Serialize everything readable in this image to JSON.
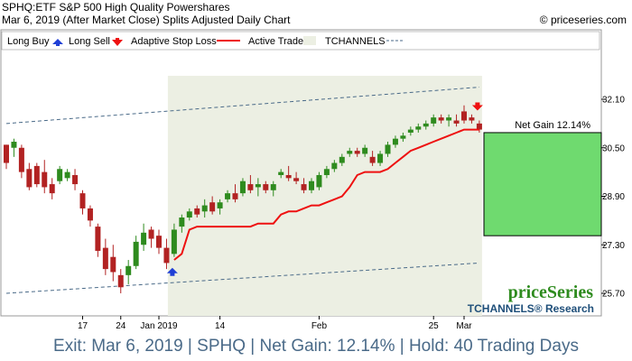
{
  "header": {
    "line1": "SPHQ:ETF S&P 500 High Quality Powershares",
    "line2": "Mar 6, 2019 (After Market Close)  Splits Adjusted Daily Chart",
    "copyright": "© priceseries.com"
  },
  "legend": [
    {
      "label": "Long Buy",
      "icon": "blue-up-arrow-icon"
    },
    {
      "label": "Long Sell",
      "icon": "red-down-arrow-icon"
    },
    {
      "label": "Adaptive Stop Loss",
      "icon": "red-line"
    },
    {
      "label": "Active Trade",
      "icon": "green-shaded-box"
    },
    {
      "label": "TCHANNELS",
      "icon": "dashed-line"
    }
  ],
  "brand": {
    "logo": "priceSeries",
    "sub": "TCHANNELS® Research"
  },
  "footer": {
    "text": "Exit: Mar 6, 2019 | SPHQ | Net Gain: 12.14% | Hold: 40 Trading Days"
  },
  "colors": {
    "up": "#2e8b1e",
    "down": "#b22222",
    "stop": "#ee1111",
    "trade_bg": "#ecefe3",
    "gain_box": "#6fda6f",
    "channel": "#4a6a88",
    "footer_text": "#4a6a88"
  },
  "chart_data": {
    "type": "candlestick",
    "y_ticks": [
      "32.10",
      "30.50",
      "28.90",
      "27.30",
      "25.70"
    ],
    "y_tick_values": [
      32.1,
      30.5,
      28.9,
      27.3,
      25.7
    ],
    "ylim": [
      25.0,
      33.5
    ],
    "x_ticks": [
      "17",
      "24",
      "Jan 2019",
      "14",
      "Feb",
      "25",
      "Mar"
    ],
    "x_tick_index": [
      10,
      15,
      20,
      28,
      41,
      56,
      60
    ],
    "gain_label": "Net Gain 12.14%",
    "gain_range": [
      27.6,
      31.0
    ],
    "entry_index": 22,
    "exit_index": 62,
    "channel_upper": [
      [
        0,
        31.3
      ],
      [
        62,
        32.5
      ]
    ],
    "channel_lower": [
      [
        0,
        25.7
      ],
      [
        62,
        26.7
      ]
    ],
    "ohlc": [
      [
        30.6,
        30.6,
        29.8,
        30.0
      ],
      [
        30.5,
        30.8,
        30.2,
        30.7
      ],
      [
        30.5,
        30.6,
        29.5,
        29.7
      ],
      [
        29.8,
        30.0,
        29.1,
        29.2
      ],
      [
        29.9,
        30.0,
        29.2,
        29.3
      ],
      [
        29.7,
        30.1,
        29.0,
        29.2
      ],
      [
        29.3,
        29.5,
        28.8,
        29.0
      ],
      [
        29.4,
        29.9,
        29.3,
        29.8
      ],
      [
        29.5,
        29.8,
        29.4,
        29.7
      ],
      [
        29.6,
        29.8,
        29.1,
        29.3
      ],
      [
        29.0,
        29.1,
        28.3,
        28.5
      ],
      [
        28.5,
        28.6,
        27.9,
        28.1
      ],
      [
        27.9,
        28.0,
        26.9,
        27.1
      ],
      [
        27.2,
        27.5,
        26.3,
        26.5
      ],
      [
        26.9,
        27.3,
        26.1,
        26.4
      ],
      [
        26.3,
        26.5,
        25.7,
        25.9
      ],
      [
        26.3,
        26.8,
        26.0,
        26.6
      ],
      [
        26.6,
        27.6,
        26.5,
        27.4
      ],
      [
        27.3,
        28.0,
        27.1,
        27.7
      ],
      [
        27.8,
        27.9,
        27.2,
        27.5
      ],
      [
        27.6,
        27.8,
        27.0,
        27.2
      ],
      [
        27.2,
        27.5,
        26.5,
        26.7
      ],
      [
        27.0,
        28.0,
        26.9,
        27.8
      ],
      [
        27.9,
        28.3,
        27.7,
        28.2
      ],
      [
        28.2,
        28.5,
        28.1,
        28.4
      ],
      [
        28.5,
        28.6,
        28.2,
        28.3
      ],
      [
        28.4,
        28.8,
        28.2,
        28.6
      ],
      [
        28.7,
        28.9,
        28.3,
        28.4
      ],
      [
        28.5,
        28.8,
        28.3,
        28.7
      ],
      [
        28.8,
        29.1,
        28.7,
        29.0
      ],
      [
        29.0,
        29.3,
        28.7,
        28.8
      ],
      [
        29.0,
        29.5,
        28.9,
        29.4
      ],
      [
        29.3,
        29.6,
        29.0,
        29.1
      ],
      [
        29.2,
        29.5,
        28.9,
        29.3
      ],
      [
        29.3,
        29.4,
        29.0,
        29.1
      ],
      [
        29.1,
        29.4,
        28.9,
        29.3
      ],
      [
        29.6,
        29.8,
        29.5,
        29.7
      ],
      [
        29.6,
        29.9,
        29.4,
        29.5
      ],
      [
        29.5,
        29.7,
        29.3,
        29.4
      ],
      [
        29.3,
        29.5,
        29.0,
        29.1
      ],
      [
        29.1,
        29.5,
        29.0,
        29.4
      ],
      [
        29.2,
        29.7,
        29.1,
        29.6
      ],
      [
        29.6,
        29.9,
        29.5,
        29.8
      ],
      [
        29.8,
        30.1,
        29.7,
        30.0
      ],
      [
        30.0,
        30.3,
        29.9,
        30.2
      ],
      [
        30.3,
        30.5,
        30.2,
        30.4
      ],
      [
        30.4,
        30.5,
        30.2,
        30.3
      ],
      [
        30.3,
        30.6,
        30.2,
        30.5
      ],
      [
        30.2,
        30.4,
        29.9,
        30.0
      ],
      [
        30.0,
        30.4,
        29.9,
        30.3
      ],
      [
        30.3,
        30.7,
        30.2,
        30.6
      ],
      [
        30.6,
        30.9,
        30.5,
        30.8
      ],
      [
        30.8,
        31.0,
        30.7,
        30.9
      ],
      [
        31.0,
        31.2,
        30.9,
        31.1
      ],
      [
        31.1,
        31.3,
        31.0,
        31.2
      ],
      [
        31.2,
        31.4,
        31.1,
        31.3
      ],
      [
        31.3,
        31.6,
        31.2,
        31.5
      ],
      [
        31.5,
        31.6,
        31.3,
        31.4
      ],
      [
        31.4,
        31.6,
        31.2,
        31.5
      ],
      [
        31.4,
        31.6,
        31.2,
        31.3
      ],
      [
        31.7,
        31.9,
        31.3,
        31.4
      ],
      [
        31.5,
        31.6,
        31.3,
        31.4
      ],
      [
        31.3,
        31.4,
        31.0,
        31.1
      ]
    ],
    "stop_loss": [
      [
        22,
        26.8
      ],
      [
        23,
        27.0
      ],
      [
        24,
        27.8
      ],
      [
        25,
        27.9
      ],
      [
        26,
        27.9
      ],
      [
        27,
        27.9
      ],
      [
        28,
        27.9
      ],
      [
        29,
        27.9
      ],
      [
        30,
        27.9
      ],
      [
        31,
        27.9
      ],
      [
        32,
        27.9
      ],
      [
        33,
        28.0
      ],
      [
        34,
        28.0
      ],
      [
        35,
        28.0
      ],
      [
        36,
        28.3
      ],
      [
        37,
        28.4
      ],
      [
        38,
        28.4
      ],
      [
        39,
        28.5
      ],
      [
        40,
        28.6
      ],
      [
        41,
        28.6
      ],
      [
        42,
        28.7
      ],
      [
        43,
        28.8
      ],
      [
        44,
        28.9
      ],
      [
        45,
        29.2
      ],
      [
        46,
        29.6
      ],
      [
        47,
        29.7
      ],
      [
        48,
        29.7
      ],
      [
        49,
        29.7
      ],
      [
        50,
        29.8
      ],
      [
        51,
        30.0
      ],
      [
        52,
        30.2
      ],
      [
        53,
        30.4
      ],
      [
        54,
        30.5
      ],
      [
        55,
        30.6
      ],
      [
        56,
        30.7
      ],
      [
        57,
        30.8
      ],
      [
        58,
        30.9
      ],
      [
        59,
        31.0
      ],
      [
        60,
        31.1
      ],
      [
        61,
        31.1
      ],
      [
        62,
        31.1
      ]
    ]
  }
}
